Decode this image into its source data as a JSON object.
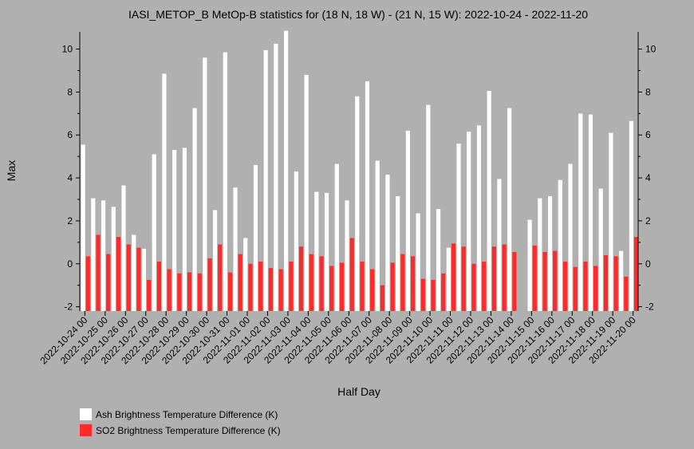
{
  "chart_data": {
    "type": "bar",
    "title": "IASI_METOP_B MetOp-B statistics for (18 N, 18 W) - (21 N, 15 W): 2022-10-24 - 2022-11-20",
    "xlabel": "Half Day",
    "ylabel": "Max",
    "ylim": [
      -2.2,
      10.8
    ],
    "yticks": [
      -2,
      0,
      2,
      4,
      6,
      8,
      10
    ],
    "grid": false,
    "legend_position": "bottom-left",
    "x_tick_labels": [
      "2022-10-24 00",
      "2022-10-25 00",
      "2022-10-26 00",
      "2022-10-27 00",
      "2022-10-28 00",
      "2022-10-29 00",
      "2022-10-30 00",
      "2022-10-31 00",
      "2022-11-01 00",
      "2022-11-02 00",
      "2022-11-03 00",
      "2022-11-04 00",
      "2022-11-05 00",
      "2022-11-06 00",
      "2022-11-07 00",
      "2022-11-08 00",
      "2022-11-09 00",
      "2022-11-10 00",
      "2022-11-11 00",
      "2022-11-12 00",
      "2022-11-13 00",
      "2022-11-14 00",
      "2022-11-15 00",
      "2022-11-16 00",
      "2022-11-17 00",
      "2022-11-18 00",
      "2022-11-19 00",
      "2022-11-20 00"
    ],
    "series": [
      {
        "name": "Ash Brightness Temperature Difference (K)",
        "color": "#ffffff",
        "values": [
          5.55,
          3.05,
          2.95,
          2.65,
          3.65,
          1.35,
          0.7,
          5.1,
          8.85,
          5.3,
          5.4,
          7.25,
          9.6,
          2.5,
          9.85,
          3.55,
          1.2,
          4.6,
          9.95,
          10.25,
          10.85,
          4.3,
          8.8,
          3.35,
          3.3,
          4.65,
          2.95,
          7.8,
          8.5,
          4.8,
          4.15,
          3.15,
          6.2,
          2.35,
          7.4,
          2.55,
          0.75,
          5.6,
          6.15,
          6.45,
          8.05,
          3.95,
          7.25,
          null,
          2.05,
          3.05,
          3.15,
          3.9,
          4.65,
          7.0,
          6.95,
          3.5,
          6.1,
          0.6,
          6.65
        ]
      },
      {
        "name": "SO2 Brightness Temperature Difference (K)",
        "color": "#ff2a2a",
        "values": [
          0.35,
          1.35,
          0.45,
          1.25,
          0.9,
          0.75,
          -0.75,
          0.1,
          -0.25,
          -0.45,
          -0.4,
          -0.45,
          0.25,
          0.9,
          -0.4,
          0.45,
          0.0,
          0.1,
          -0.2,
          -0.25,
          0.1,
          0.8,
          0.45,
          0.35,
          -0.1,
          0.05,
          1.2,
          0.1,
          -0.25,
          -1.0,
          0.05,
          0.45,
          0.35,
          -0.7,
          -0.75,
          -0.45,
          0.95,
          0.8,
          0.0,
          0.1,
          0.8,
          0.9,
          0.55,
          null,
          0.85,
          0.55,
          0.6,
          0.1,
          -0.15,
          0.1,
          -0.1,
          0.4,
          0.35,
          -0.6,
          1.25
        ]
      }
    ]
  }
}
